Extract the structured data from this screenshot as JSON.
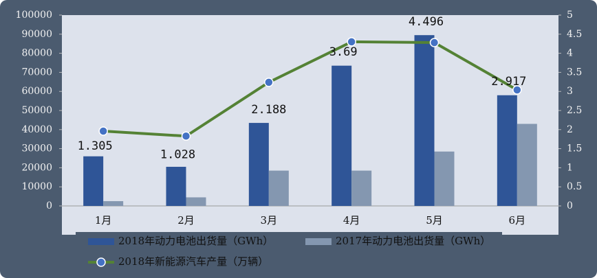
{
  "chart_data": {
    "type": "bar_line",
    "categories": [
      "1月",
      "2月",
      "3月",
      "4月",
      "5月",
      "6月"
    ],
    "series": [
      {
        "name": "2018年动力电池出货量（GWh）",
        "type": "bar",
        "color": "#2f5597",
        "values": [
          26000,
          20500,
          43500,
          73500,
          89500,
          58000
        ]
      },
      {
        "name": "2017年动力电池出货量（GWh）",
        "type": "bar",
        "color": "#8497b0",
        "values": [
          2500,
          4500,
          18500,
          18500,
          28500,
          43000
        ]
      },
      {
        "name": "2018年新能源汽车产量（万辆）",
        "type": "line",
        "axis": "y2",
        "color": "#548235",
        "marker_color": "#4472c4",
        "values": [
          1.96,
          1.83,
          3.24,
          4.3,
          4.28,
          3.04
        ]
      }
    ],
    "annotations": [
      "1.305",
      "1.028",
      "2.188",
      "3.69",
      "4.496",
      "2.917"
    ],
    "ylim": [
      0,
      100000
    ],
    "yticks": [
      0,
      10000,
      20000,
      30000,
      40000,
      50000,
      60000,
      70000,
      80000,
      90000,
      100000
    ],
    "y2lim": [
      0,
      5
    ],
    "y2ticks": [
      0,
      0.5,
      1,
      1.5,
      2,
      2.5,
      3,
      3.5,
      4,
      4.5,
      5
    ]
  }
}
